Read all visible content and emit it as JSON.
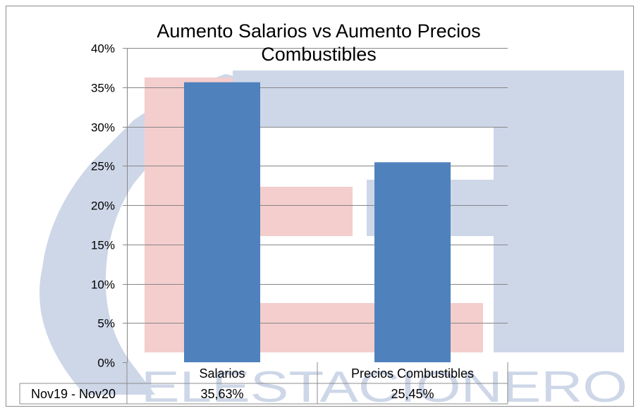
{
  "watermark": {
    "text": "ELESTACIONERO",
    "colors": {
      "blue": "#c9d3e6",
      "red": "#f3c8c8"
    }
  },
  "chart_data": {
    "type": "bar",
    "title_lines": [
      "Aumento Salarios vs Aumento Precios",
      "Combustibles"
    ],
    "categories": [
      "Salarios",
      "Precios Combustibles"
    ],
    "series": [
      {
        "name": "Nov19 - Nov20",
        "values": [
          35.63,
          25.45
        ],
        "labels": [
          "35,63%",
          "25,45%"
        ],
        "color": "#4f81bd"
      }
    ],
    "ylim": [
      0,
      40
    ],
    "yticks": [
      0,
      5,
      10,
      15,
      20,
      25,
      30,
      35,
      40
    ],
    "ytick_labels": [
      "0%",
      "5%",
      "10%",
      "15%",
      "20%",
      "25%",
      "30%",
      "35%",
      "40%"
    ],
    "grid": true,
    "legend": "data-table-left"
  }
}
